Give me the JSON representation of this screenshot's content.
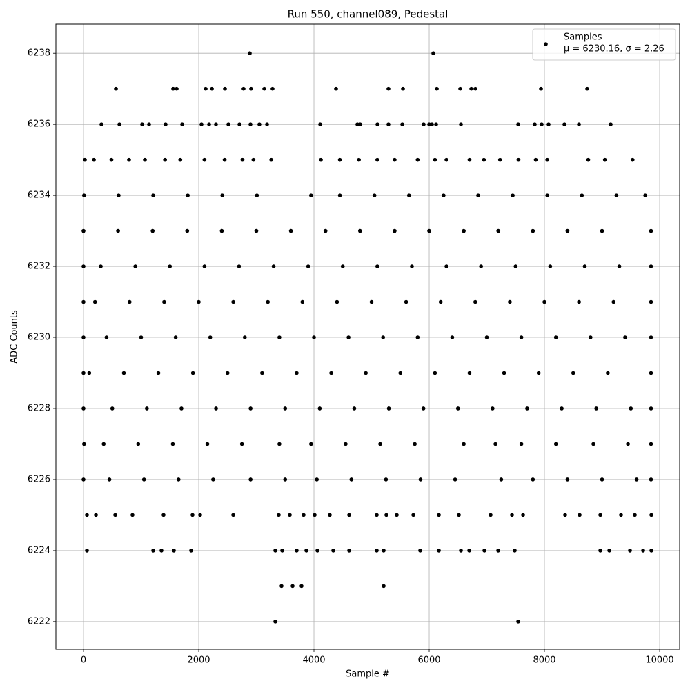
{
  "chart_data": {
    "type": "scatter",
    "title": "Run 550, channel089, Pedestal",
    "x_label": "Sample #",
    "y_label": "ADC Counts",
    "xlim": [
      -479,
      10347
    ],
    "ylim": [
      6221.22,
      6238.82
    ],
    "xticks": [
      0,
      2000,
      4000,
      6000,
      8000,
      10000
    ],
    "yticks": [
      6222,
      6224,
      6226,
      6228,
      6230,
      6232,
      6234,
      6236,
      6238
    ],
    "grid": true,
    "legend_loc": "upper right",
    "legend_note": "μ = 6230.16, σ = 2.26",
    "series": [
      {
        "name": "Samples",
        "color": "#000000",
        "x": [
          2886,
          6072,
          563,
          1557,
          1617,
          2120,
          2228,
          2455,
          2778,
          2910,
          3138,
          3281,
          4383,
          5293,
          5545,
          6132,
          6539,
          6731,
          6802,
          7940,
          8743,
          311,
          623,
          1018,
          1138,
          1425,
          1713,
          2048,
          2180,
          2299,
          2515,
          2707,
          2898,
          3053,
          3186,
          4108,
          4754,
          4802,
          5102,
          5293,
          5533,
          5904,
          6000,
          6048,
          6120,
          6551,
          7545,
          7832,
          7952,
          8072,
          8347,
          8599,
          9150,
          24,
          180,
          485,
          790,
          1066,
          1415,
          1680,
          2100,
          2450,
          2760,
          2950,
          3260,
          4120,
          4450,
          4780,
          5100,
          5400,
          5800,
          6100,
          6300,
          6700,
          6950,
          7230,
          7550,
          7850,
          8050,
          8760,
          9050,
          9530,
          10,
          610,
          1210,
          1810,
          2410,
          3010,
          3950,
          4450,
          5050,
          5650,
          6250,
          6850,
          7450,
          8050,
          8650,
          9250,
          9750,
          0,
          600,
          1200,
          1800,
          2400,
          3000,
          3600,
          4200,
          4800,
          5400,
          6000,
          6600,
          7200,
          7800,
          8400,
          9000,
          9850,
          0,
          300,
          900,
          1500,
          2100,
          2700,
          3300,
          3900,
          4500,
          5100,
          5700,
          6300,
          6900,
          7500,
          8100,
          8700,
          9300,
          9850,
          0,
          200,
          800,
          1400,
          2000,
          2600,
          3200,
          3800,
          4400,
          5000,
          5600,
          6200,
          6800,
          7400,
          8000,
          8600,
          9200,
          9850,
          0,
          400,
          1000,
          1600,
          2200,
          2800,
          3400,
          4000,
          4600,
          5200,
          5800,
          6400,
          7000,
          7600,
          8200,
          8800,
          9400,
          9850,
          0,
          100,
          700,
          1300,
          1900,
          2500,
          3100,
          3700,
          4300,
          4900,
          5500,
          6100,
          6700,
          7300,
          7900,
          8500,
          9100,
          9850,
          0,
          500,
          1100,
          1700,
          2300,
          2900,
          3500,
          4100,
          4700,
          5300,
          5900,
          6500,
          7100,
          7700,
          8300,
          8900,
          9500,
          9850,
          10,
          350,
          950,
          1550,
          2150,
          2750,
          3400,
          3950,
          4550,
          5150,
          5750,
          6600,
          7150,
          7600,
          8200,
          8850,
          9450,
          9850,
          0,
          450,
          1050,
          1650,
          2250,
          2900,
          3500,
          4050,
          4650,
          5250,
          5850,
          6450,
          7250,
          7800,
          8400,
          9000,
          9600,
          9850,
          60,
          216,
          551,
          850,
          1389,
          1892,
          2024,
          2599,
          3389,
          3581,
          3820,
          4012,
          4275,
          4611,
          5090,
          5257,
          5437,
          5725,
          6168,
          6515,
          7066,
          7437,
          7629,
          8359,
          8611,
          8970,
          9329,
          9569,
          9856,
          60,
          1210,
          1353,
          1569,
          1868,
          3329,
          3449,
          3700,
          3868,
          4060,
          4335,
          4611,
          5090,
          5210,
          5844,
          6168,
          6551,
          6695,
          6958,
          7198,
          7485,
          8970,
          9126,
          9485,
          9713,
          9856,
          3437,
          3629,
          3784,
          5210,
          3329,
          7545
        ],
        "values": [
          6238,
          6238,
          6237,
          6237,
          6237,
          6237,
          6237,
          6237,
          6237,
          6237,
          6237,
          6237,
          6237,
          6237,
          6237,
          6237,
          6237,
          6237,
          6237,
          6237,
          6237,
          6236,
          6236,
          6236,
          6236,
          6236,
          6236,
          6236,
          6236,
          6236,
          6236,
          6236,
          6236,
          6236,
          6236,
          6236,
          6236,
          6236,
          6236,
          6236,
          6236,
          6236,
          6236,
          6236,
          6236,
          6236,
          6236,
          6236,
          6236,
          6236,
          6236,
          6236,
          6236,
          6235,
          6235,
          6235,
          6235,
          6235,
          6235,
          6235,
          6235,
          6235,
          6235,
          6235,
          6235,
          6235,
          6235,
          6235,
          6235,
          6235,
          6235,
          6235,
          6235,
          6235,
          6235,
          6235,
          6235,
          6235,
          6235,
          6235,
          6235,
          6235,
          6234,
          6234,
          6234,
          6234,
          6234,
          6234,
          6234,
          6234,
          6234,
          6234,
          6234,
          6234,
          6234,
          6234,
          6234,
          6234,
          6234,
          6233,
          6233,
          6233,
          6233,
          6233,
          6233,
          6233,
          6233,
          6233,
          6233,
          6233,
          6233,
          6233,
          6233,
          6233,
          6233,
          6233,
          6232,
          6232,
          6232,
          6232,
          6232,
          6232,
          6232,
          6232,
          6232,
          6232,
          6232,
          6232,
          6232,
          6232,
          6232,
          6232,
          6232,
          6232,
          6231,
          6231,
          6231,
          6231,
          6231,
          6231,
          6231,
          6231,
          6231,
          6231,
          6231,
          6231,
          6231,
          6231,
          6231,
          6231,
          6231,
          6231,
          6230,
          6230,
          6230,
          6230,
          6230,
          6230,
          6230,
          6230,
          6230,
          6230,
          6230,
          6230,
          6230,
          6230,
          6230,
          6230,
          6230,
          6230,
          6229,
          6229,
          6229,
          6229,
          6229,
          6229,
          6229,
          6229,
          6229,
          6229,
          6229,
          6229,
          6229,
          6229,
          6229,
          6229,
          6229,
          6229,
          6228,
          6228,
          6228,
          6228,
          6228,
          6228,
          6228,
          6228,
          6228,
          6228,
          6228,
          6228,
          6228,
          6228,
          6228,
          6228,
          6228,
          6228,
          6227,
          6227,
          6227,
          6227,
          6227,
          6227,
          6227,
          6227,
          6227,
          6227,
          6227,
          6227,
          6227,
          6227,
          6227,
          6227,
          6227,
          6227,
          6226,
          6226,
          6226,
          6226,
          6226,
          6226,
          6226,
          6226,
          6226,
          6226,
          6226,
          6226,
          6226,
          6226,
          6226,
          6226,
          6226,
          6226,
          6225,
          6225,
          6225,
          6225,
          6225,
          6225,
          6225,
          6225,
          6225,
          6225,
          6225,
          6225,
          6225,
          6225,
          6225,
          6225,
          6225,
          6225,
          6225,
          6225,
          6225,
          6225,
          6225,
          6225,
          6225,
          6225,
          6225,
          6225,
          6225,
          6224,
          6224,
          6224,
          6224,
          6224,
          6224,
          6224,
          6224,
          6224,
          6224,
          6224,
          6224,
          6224,
          6224,
          6224,
          6224,
          6224,
          6224,
          6224,
          6224,
          6224,
          6224,
          6224,
          6224,
          6224,
          6224,
          6223,
          6223,
          6223,
          6223,
          6222,
          6222
        ]
      }
    ]
  }
}
